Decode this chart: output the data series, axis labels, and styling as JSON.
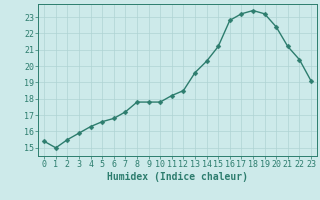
{
  "x": [
    0,
    1,
    2,
    3,
    4,
    5,
    6,
    7,
    8,
    9,
    10,
    11,
    12,
    13,
    14,
    15,
    16,
    17,
    18,
    19,
    20,
    21,
    22,
    23
  ],
  "y": [
    15.4,
    15.0,
    15.5,
    15.9,
    16.3,
    16.6,
    16.8,
    17.2,
    17.8,
    17.8,
    17.8,
    18.2,
    18.5,
    19.6,
    20.3,
    21.2,
    22.8,
    23.2,
    23.4,
    23.2,
    22.4,
    21.2,
    20.4,
    19.1
  ],
  "line_color": "#2d7d6e",
  "marker": "D",
  "markersize": 2.5,
  "linewidth": 1.0,
  "bg_color": "#cdeaea",
  "grid_color": "#afd4d4",
  "xlabel": "Humidex (Indice chaleur)",
  "xlim": [
    -0.5,
    23.5
  ],
  "ylim": [
    14.5,
    23.8
  ],
  "yticks": [
    15,
    16,
    17,
    18,
    19,
    20,
    21,
    22,
    23
  ],
  "xticks": [
    0,
    1,
    2,
    3,
    4,
    5,
    6,
    7,
    8,
    9,
    10,
    11,
    12,
    13,
    14,
    15,
    16,
    17,
    18,
    19,
    20,
    21,
    22,
    23
  ],
  "tick_fontsize": 6,
  "xlabel_fontsize": 7
}
